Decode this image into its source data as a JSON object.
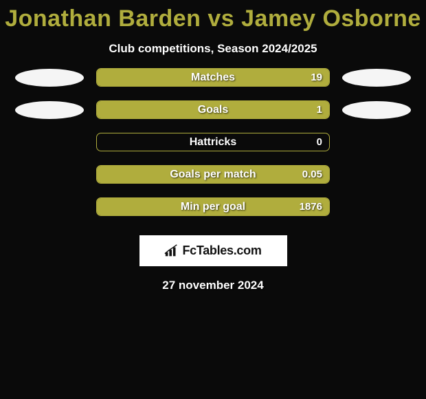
{
  "title": "Jonathan Barden vs Jamey Osborne",
  "subtitle": "Club competitions, Season 2024/2025",
  "date": "27 november 2024",
  "colors": {
    "accent": "#b0ad3d",
    "background": "#0a0a0a",
    "text": "#ffffff",
    "logo_bg": "#ffffff",
    "logo_text": "#111111"
  },
  "bars": [
    {
      "label": "Matches",
      "value": "19",
      "fill_pct": 100,
      "show_avatars": true
    },
    {
      "label": "Goals",
      "value": "1",
      "fill_pct": 100,
      "show_avatars": true
    },
    {
      "label": "Hattricks",
      "value": "0",
      "fill_pct": 0,
      "show_avatars": false
    },
    {
      "label": "Goals per match",
      "value": "0.05",
      "fill_pct": 100,
      "show_avatars": false
    },
    {
      "label": "Min per goal",
      "value": "1876",
      "fill_pct": 100,
      "show_avatars": false
    }
  ],
  "logo": {
    "text": "FcTables.com",
    "icon": "bar-chart-icon"
  }
}
